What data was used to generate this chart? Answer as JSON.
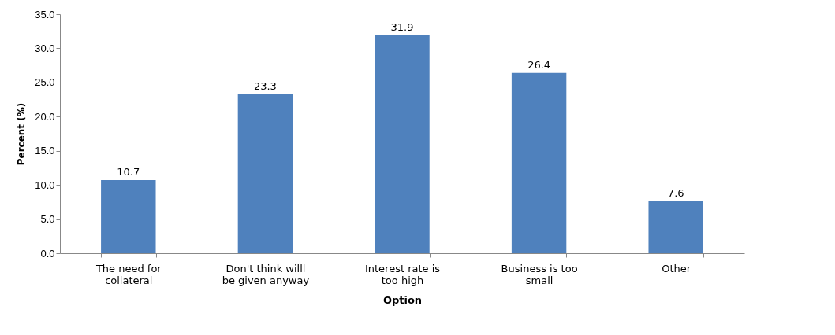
{
  "chart_data": {
    "type": "bar",
    "xlabel": "Option",
    "ylabel": "Percent (%)",
    "categories": [
      "The need for collateral",
      "Don't think willl be given anyway",
      "Interest rate  is too high",
      "Business is too small",
      "Other"
    ],
    "values": [
      10.7,
      23.3,
      31.9,
      26.4,
      7.6
    ],
    "color": "#4f81bd",
    "ylim": [
      0,
      35
    ],
    "yticks": [
      {
        "value": 0,
        "label": "0.0"
      },
      {
        "value": 5,
        "label": "5.0"
      },
      {
        "value": 10,
        "label": "10.0"
      },
      {
        "value": 15,
        "label": "15.0"
      },
      {
        "value": 20,
        "label": "20.0"
      },
      {
        "value": 25,
        "label": "25.0"
      },
      {
        "value": 30,
        "label": "30.0"
      },
      {
        "value": 35,
        "label": "35.0"
      }
    ],
    "grid": false,
    "data_labels": true
  }
}
